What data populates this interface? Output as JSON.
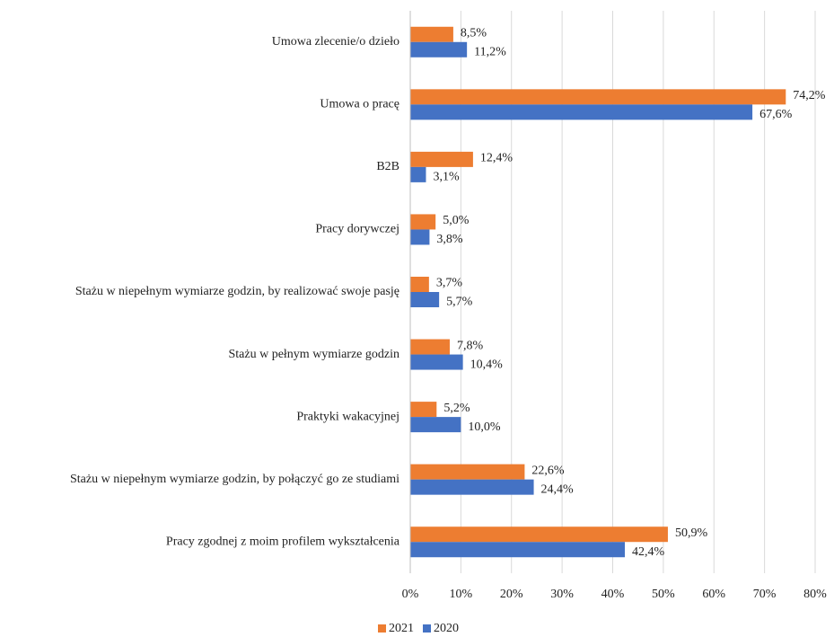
{
  "chart_data": {
    "type": "hbar",
    "categories": [
      "Umowa zlecenie/o dzieło",
      "Umowa o pracę",
      "B2B",
      "Pracy dorywczej",
      "Stażu w niepełnym wymiarze godzin, by realizować swoje pasję",
      "Stażu w pełnym wymiarze godzin",
      "Praktyki wakacyjnej",
      "Stażu w niepełnym wymiarze godzin, by połączyć go ze studiami",
      "Pracy zgodnej z moim profilem wykształcenia"
    ],
    "series": [
      {
        "name": "2021",
        "color": "#ed7d31",
        "values": [
          8.5,
          74.2,
          12.4,
          5.0,
          3.7,
          7.8,
          5.2,
          22.6,
          50.9
        ],
        "value_labels": [
          "8,5%",
          "74,2%",
          "12,4%",
          "5,0%",
          "3,7%",
          "7,8%",
          "5,2%",
          "22,6%",
          "50,9%"
        ]
      },
      {
        "name": "2020",
        "color": "#4472c4",
        "values": [
          11.2,
          67.6,
          3.1,
          3.8,
          5.7,
          10.4,
          10.0,
          24.4,
          42.4
        ],
        "value_labels": [
          "11,2%",
          "67,6%",
          "3,1%",
          "3,8%",
          "5,7%",
          "10,4%",
          "10,0%",
          "24,4%",
          "42,4%"
        ]
      }
    ],
    "xlim": [
      0,
      80
    ],
    "xticks": [
      {
        "value": 0,
        "label": "0%"
      },
      {
        "value": 10,
        "label": "10%"
      },
      {
        "value": 20,
        "label": "20%"
      },
      {
        "value": 30,
        "label": "30%"
      },
      {
        "value": 40,
        "label": "40%"
      },
      {
        "value": 50,
        "label": "50%"
      },
      {
        "value": 60,
        "label": "60%"
      },
      {
        "value": 70,
        "label": "70%"
      },
      {
        "value": 80,
        "label": "80%"
      }
    ],
    "grid": true,
    "legend": "bottom"
  }
}
